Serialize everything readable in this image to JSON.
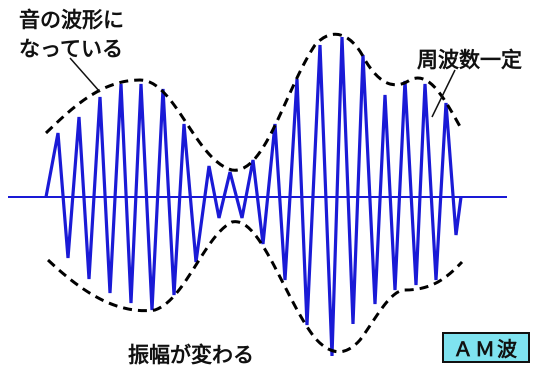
{
  "labels": {
    "envelope_line1": "音の波形に",
    "envelope_line2": "なっている",
    "carrier": "周波数一定",
    "amplitude": "振幅が変わる",
    "badge": "ＡＭ波"
  },
  "colors": {
    "carrier_wave": "#1a1ad6",
    "axis": "#1a1ad6",
    "envelope": "#000000",
    "badge_bg": "#7fe3f0"
  }
}
